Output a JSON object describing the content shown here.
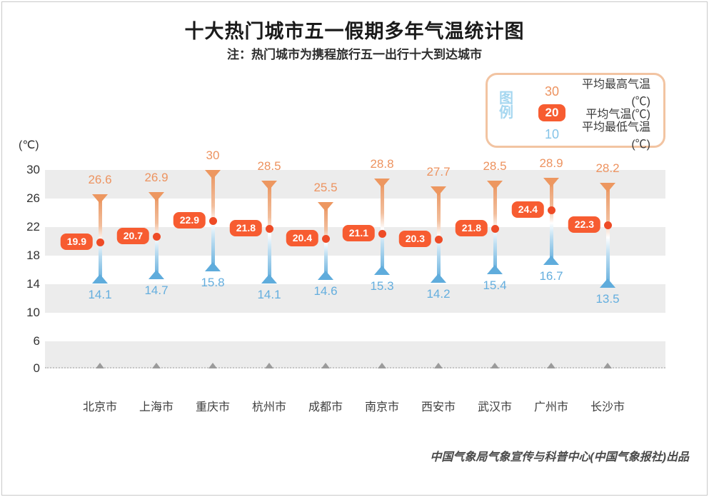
{
  "header": {
    "title": "十大热门城市五一假期多年气温统计图",
    "subtitle": "注：热门城市为携程旅行五一出行十大到达城市"
  },
  "legend": {
    "title": "图例",
    "items": [
      {
        "symbol": "30",
        "label": "平均最高气温(℃)"
      },
      {
        "symbol": "20",
        "label": "平均气温(℃)"
      },
      {
        "symbol": "10",
        "label": "平均最低气温(℃)"
      }
    ]
  },
  "chart_data": {
    "type": "range-dot",
    "title": "十大热门城市五一假期多年气温统计图",
    "categories": [
      "北京市",
      "上海市",
      "重庆市",
      "杭州市",
      "成都市",
      "南京市",
      "西安市",
      "武汉市",
      "广州市",
      "长沙市"
    ],
    "series": [
      {
        "name": "平均最高气温(℃)",
        "role": "max",
        "values": [
          26.6,
          26.9,
          30,
          28.5,
          25.5,
          28.8,
          27.7,
          28.5,
          28.9,
          28.2
        ]
      },
      {
        "name": "平均气温(℃)",
        "role": "avg",
        "values": [
          19.9,
          20.7,
          22.9,
          21.8,
          20.4,
          21.1,
          20.3,
          21.8,
          24.4,
          22.3
        ]
      },
      {
        "name": "平均最低气温(℃)",
        "role": "min",
        "values": [
          14.1,
          14.7,
          15.8,
          14.1,
          14.6,
          15.3,
          14.2,
          15.4,
          16.7,
          13.5
        ]
      }
    ],
    "ylabel": "(℃)",
    "yticks": [
      30,
      26,
      22,
      18,
      14,
      10,
      6,
      0
    ],
    "ylim": [
      0,
      30
    ],
    "grid_bands": [
      [
        30,
        26
      ],
      [
        22,
        18
      ],
      [
        14,
        10
      ],
      [
        6,
        0
      ]
    ],
    "grid": "alternating-bands",
    "legend_position": "top-right"
  },
  "colors": {
    "max_text": "#ED9360",
    "max_marker": "#ED9760",
    "avg_badge": "#F75C31",
    "avg_dot": "#EE4B26",
    "min_text": "#64AEDE",
    "min_marker": "#5FACDC",
    "band": "#ECECEC",
    "legend_border": "#F2C4A2",
    "legend_title": "#A6D7F0",
    "baseline_marker": "#9B9B9B"
  },
  "footer": {
    "credit": "中国气象局气象宣传与科普中心(中国气象报社)出品"
  }
}
